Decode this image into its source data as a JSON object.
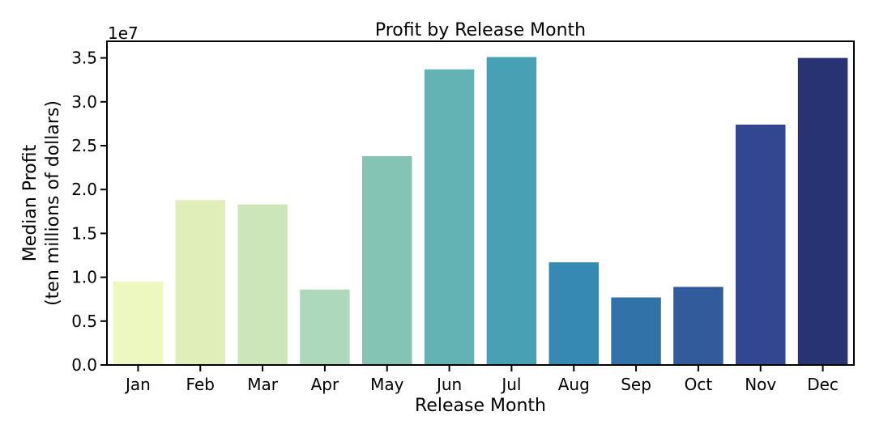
{
  "chart_data": {
    "type": "bar",
    "title": "Profit by Release Month",
    "xlabel": "Release Month",
    "ylabel_line1": "Median Profit",
    "ylabel_line2": "(ten millions of dollars)",
    "y_offset_label": "1e7",
    "categories": [
      "Jan",
      "Feb",
      "Mar",
      "Apr",
      "May",
      "Jun",
      "Jul",
      "Aug",
      "Sep",
      "Oct",
      "Nov",
      "Dec"
    ],
    "values": [
      9500000,
      18800000,
      18300000,
      8600000,
      23800000,
      33700000,
      35100000,
      11700000,
      7700000,
      8900000,
      27400000,
      35000000
    ],
    "ylim": [
      0,
      36900000
    ],
    "yticks": [
      0,
      5000000,
      10000000,
      15000000,
      20000000,
      25000000,
      30000000,
      35000000
    ],
    "ytick_labels": [
      "0.0",
      "0.5",
      "1.0",
      "1.5",
      "2.0",
      "2.5",
      "3.0",
      "3.5"
    ],
    "colors": [
      "#edf8c1",
      "#e0efba",
      "#cde6b9",
      "#aed8bc",
      "#84c4b4",
      "#63b3b4",
      "#48a0b5",
      "#3689b2",
      "#3172a8",
      "#325b9c",
      "#334690",
      "#273373"
    ],
    "grid": false,
    "legend": "none"
  }
}
